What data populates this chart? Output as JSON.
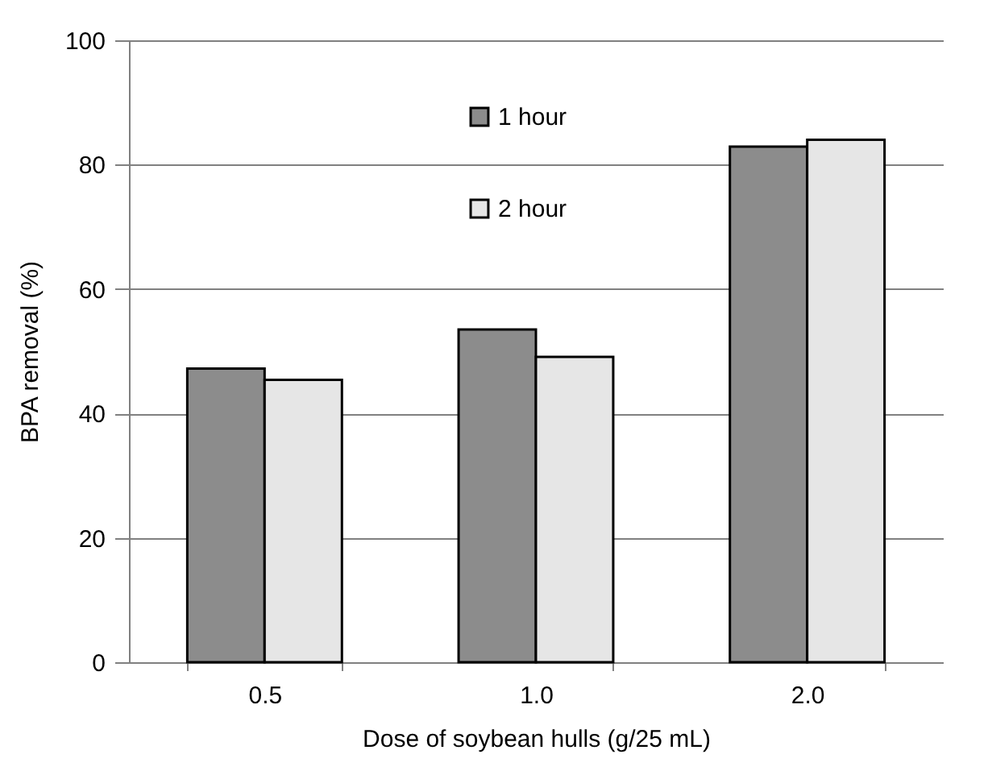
{
  "chart_data": {
    "type": "bar",
    "xlabel": "Dose of soybean hulls (g/25 mL)",
    "ylabel": "BPA removal (%)",
    "categories": [
      "0.5",
      "1.0",
      "2.0"
    ],
    "series": [
      {
        "name": "1 hour",
        "color": "#8c8c8c",
        "values": [
          47.2,
          53.5,
          82.9
        ]
      },
      {
        "name": "2 hour",
        "color": "#e6e6e6",
        "values": [
          45.4,
          49.1,
          84.0
        ]
      }
    ],
    "ylim": [
      0,
      100
    ],
    "yticks": [
      0,
      20,
      40,
      60,
      80,
      100
    ],
    "grid": "y",
    "legend": "top"
  }
}
